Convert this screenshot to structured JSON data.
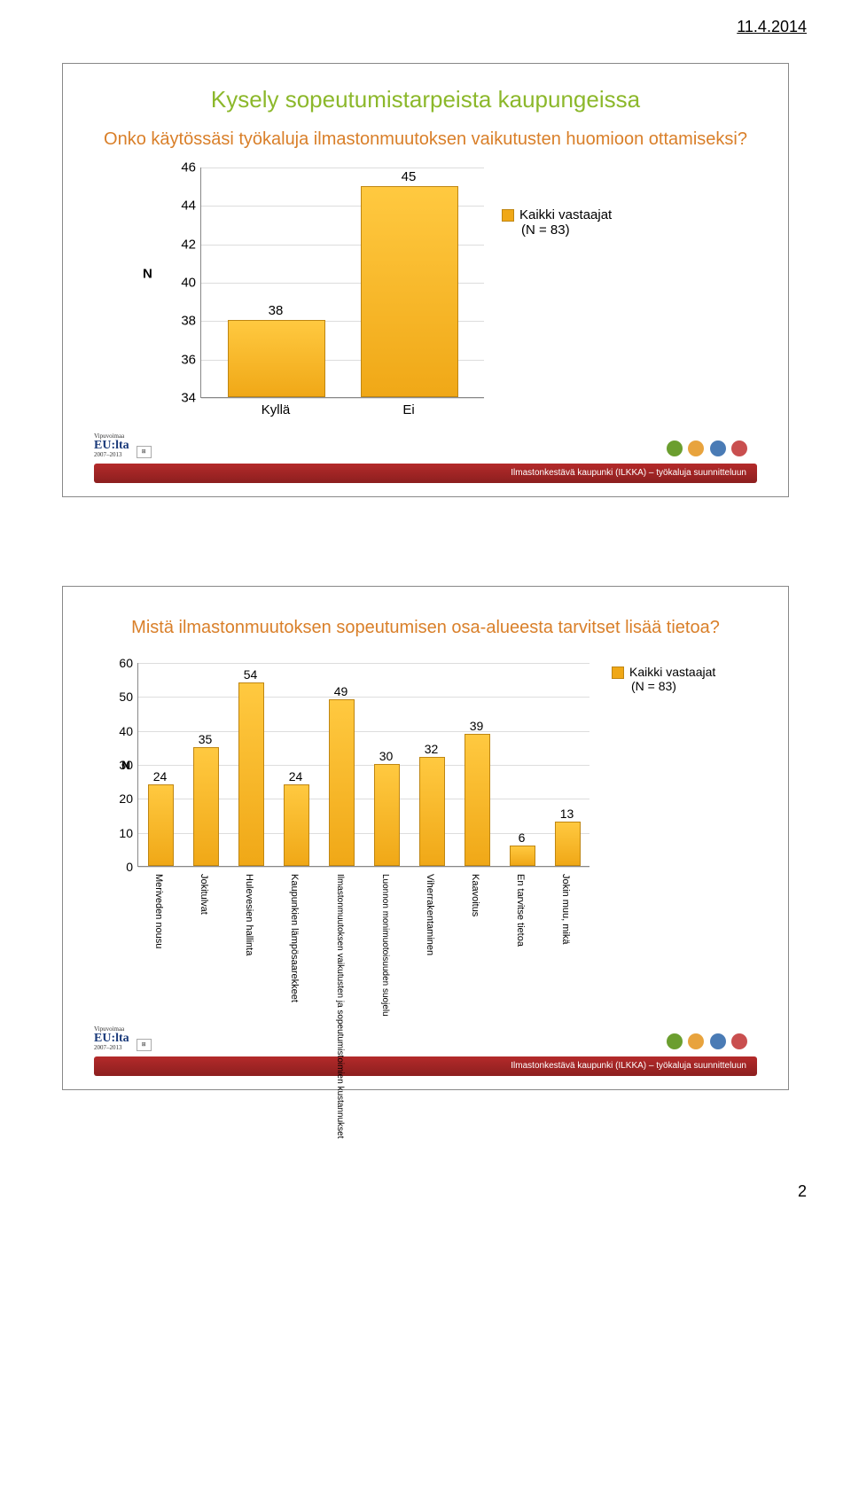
{
  "header": {
    "date": "11.4.2014"
  },
  "page_number": "2",
  "footer_text": "Ilmastonkestävä kaupunki (ILKKA) – työkaluja suunnitteluun",
  "logo": {
    "line1": "Vipuvoimaa",
    "line2": "EU:lta",
    "line3": "2007–2013"
  },
  "slide1": {
    "title": "Kysely sopeutumistarpeista kaupungeissa",
    "subtitle": "Onko käytössäsi työkaluja ilmastonmuutoksen vaikutusten huomioon ottamiseksi?",
    "chart": {
      "type": "bar",
      "ylabel": "N",
      "ylim": [
        34,
        46
      ],
      "ytick_step": 2,
      "yticks": [
        34,
        36,
        38,
        40,
        42,
        44,
        46
      ],
      "categories": [
        "Kyllä",
        "Ei"
      ],
      "values": [
        38,
        45
      ],
      "bar_color": "#f0a817",
      "bar_border": "#bf8612",
      "background": "#ffffff",
      "grid_color": "#dddddd",
      "legend_label": "Kaikki vastaajat",
      "legend_sub": "(N = 83)"
    }
  },
  "slide2": {
    "subtitle": "Mistä ilmastonmuutoksen sopeutumisen osa-alueesta tarvitset lisää tietoa?",
    "chart": {
      "type": "bar",
      "ylabel": "N",
      "ylim": [
        0,
        60
      ],
      "ytick_step": 10,
      "yticks": [
        0,
        10,
        20,
        30,
        40,
        50,
        60
      ],
      "categories": [
        "Meriveden nousu",
        "Jokitulvat",
        "Hulevesien hallinta",
        "Kaupunkien lämpösaarekkeet",
        "Ilmastonmuutoksen vaikutusten ja sopeutumistoimien kustannukset",
        "Luonnon monimuotoisuuden suojelu",
        "Viherrakentaminen",
        "Kaavoitus",
        "En tarvitse tietoa",
        "Jokin muu, mikä"
      ],
      "values": [
        24,
        35,
        54,
        24,
        49,
        30,
        32,
        39,
        6,
        13
      ],
      "bar_color": "#f0a817",
      "bar_border": "#bf8612",
      "background": "#ffffff",
      "grid_color": "#dddddd",
      "legend_label": "Kaikki vastaajat",
      "legend_sub": "(N = 83)"
    }
  }
}
